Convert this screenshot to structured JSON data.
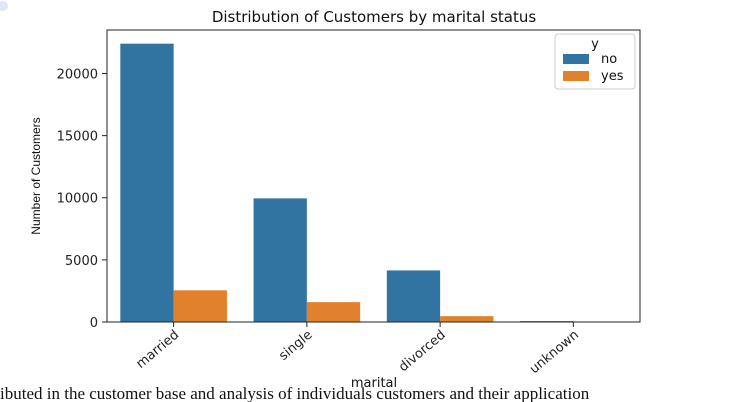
{
  "chart_data": {
    "type": "bar",
    "title": "Distribution of Customers by marital status",
    "xlabel": "marital",
    "ylabel": "Number of Customers",
    "categories": [
      "married",
      "single",
      "divorced",
      "unknown"
    ],
    "series": [
      {
        "name": "no",
        "values": [
          22400,
          9950,
          4150,
          70
        ]
      },
      {
        "name": "yes",
        "values": [
          2550,
          1600,
          470,
          10
        ]
      }
    ],
    "ylim": [
      0,
      23500
    ],
    "yticks": [
      0,
      5000,
      10000,
      15000,
      20000
    ],
    "legend": {
      "title": "y",
      "placement": "top-right"
    },
    "grid": false,
    "colors": {
      "no": "#3274a1",
      "yes": "#e1812c"
    }
  },
  "caption": "ibuted in the customer base and analysis of individuals customers and their application"
}
